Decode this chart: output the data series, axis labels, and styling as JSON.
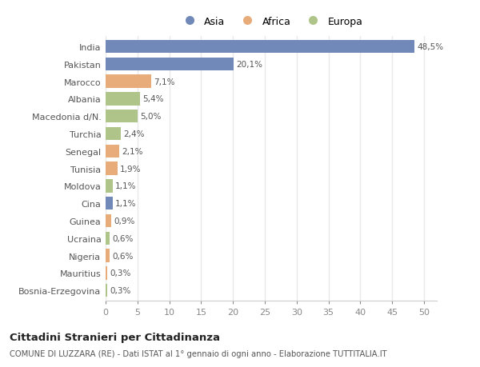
{
  "categories": [
    "Bosnia-Erzegovina",
    "Mauritius",
    "Nigeria",
    "Ucraina",
    "Guinea",
    "Cina",
    "Moldova",
    "Tunisia",
    "Senegal",
    "Turchia",
    "Macedonia d/N.",
    "Albania",
    "Marocco",
    "Pakistan",
    "India"
  ],
  "values": [
    0.3,
    0.3,
    0.6,
    0.6,
    0.9,
    1.1,
    1.1,
    1.9,
    2.1,
    2.4,
    5.0,
    5.4,
    7.1,
    20.1,
    48.5
  ],
  "labels": [
    "0,3%",
    "0,3%",
    "0,6%",
    "0,6%",
    "0,9%",
    "1,1%",
    "1,1%",
    "1,9%",
    "2,1%",
    "2,4%",
    "5,0%",
    "5,4%",
    "7,1%",
    "20,1%",
    "48,5%"
  ],
  "continent": [
    "Europa",
    "Africa",
    "Africa",
    "Europa",
    "Africa",
    "Asia",
    "Europa",
    "Africa",
    "Africa",
    "Europa",
    "Europa",
    "Europa",
    "Africa",
    "Asia",
    "Asia"
  ],
  "colors": {
    "Asia": "#7189b8",
    "Africa": "#e8ab7a",
    "Europa": "#aec489"
  },
  "legend_labels": [
    "Asia",
    "Africa",
    "Europa"
  ],
  "title": "Cittadini Stranieri per Cittadinanza",
  "subtitle": "COMUNE DI LUZZARA (RE) - Dati ISTAT al 1° gennaio di ogni anno - Elaborazione TUTTITALIA.IT",
  "xlim": [
    0,
    52
  ],
  "background_color": "#ffffff",
  "grid_color": "#e8e8e8",
  "bar_height": 0.75
}
